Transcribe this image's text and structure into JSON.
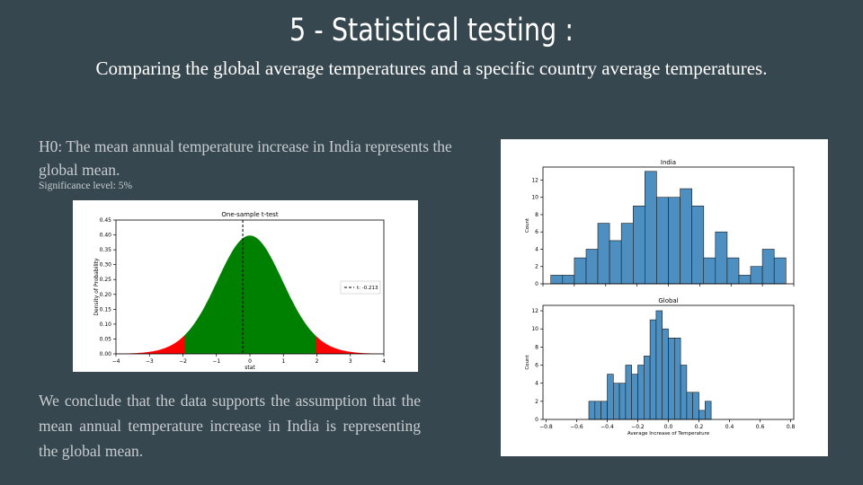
{
  "slide": {
    "title": "5 - Statistical testing :",
    "subtitle": "Comparing the global average temperatures and a specific country average temperatures.",
    "hypothesis": "H0: The mean annual temperature increase in India represents the global mean.",
    "significance": "Significance level: 5%",
    "conclusion": "We conclude that the data supports the assumption that the mean annual temperature increase in India is representing the global mean."
  },
  "colors": {
    "background": "#37474f",
    "curve_fill": "#008000",
    "tail_fill": "#ff0000",
    "hist_bar": "#4c8fc0"
  },
  "chart_data": [
    {
      "type": "area",
      "title": "One-sample t-test",
      "xlabel": "stat",
      "ylabel": "Density of Probability",
      "xlim": [
        -4,
        4
      ],
      "ylim": [
        0,
        0.45
      ],
      "xticks": [
        -4,
        -3,
        -2,
        -1,
        0,
        1,
        2,
        3,
        4
      ],
      "yticks": [
        0.0,
        0.05,
        0.1,
        0.15,
        0.2,
        0.25,
        0.3,
        0.35,
        0.4,
        0.45
      ],
      "distribution": "Student t density (peak 0.40 at 0)",
      "critical_values": [
        -1.96,
        1.96
      ],
      "t_stat": -0.213,
      "legend": "t: -0.213",
      "legend_position": "right"
    },
    {
      "type": "bar",
      "title": "India",
      "ylabel": "Count",
      "xlim": [
        -0.8,
        0.8
      ],
      "ylim": [
        0,
        13.5
      ],
      "yticks": [
        0,
        2,
        4,
        6,
        8,
        10,
        12
      ],
      "bin_width": 0.075,
      "bin_start": -0.75,
      "values": [
        1,
        1,
        3,
        4,
        7,
        5,
        7,
        9,
        13,
        10,
        10,
        11,
        9,
        3,
        6,
        3,
        1,
        2,
        4,
        3
      ]
    },
    {
      "type": "bar",
      "title": "Global",
      "xlabel": "Average Increase of Temperature",
      "ylabel": "Count",
      "xlim": [
        -0.82,
        0.82
      ],
      "ylim": [
        0,
        12.6
      ],
      "xticks": [
        -0.8,
        -0.6,
        -0.4,
        -0.2,
        0.0,
        0.2,
        0.4,
        0.6,
        0.8
      ],
      "xtick_labels": [
        "−0.8",
        "−0.6",
        "−0.4",
        "−0.2",
        "0.0",
        "0.2",
        "0.4",
        "0.6",
        "0.8"
      ],
      "yticks": [
        0,
        2,
        4,
        6,
        8,
        10,
        12
      ],
      "bin_width": 0.04,
      "bin_start": -0.52,
      "values": [
        2,
        2,
        2,
        5,
        4,
        4,
        6,
        5,
        6,
        7,
        11,
        12,
        10,
        9,
        9,
        6,
        3,
        3,
        1,
        2
      ]
    }
  ]
}
